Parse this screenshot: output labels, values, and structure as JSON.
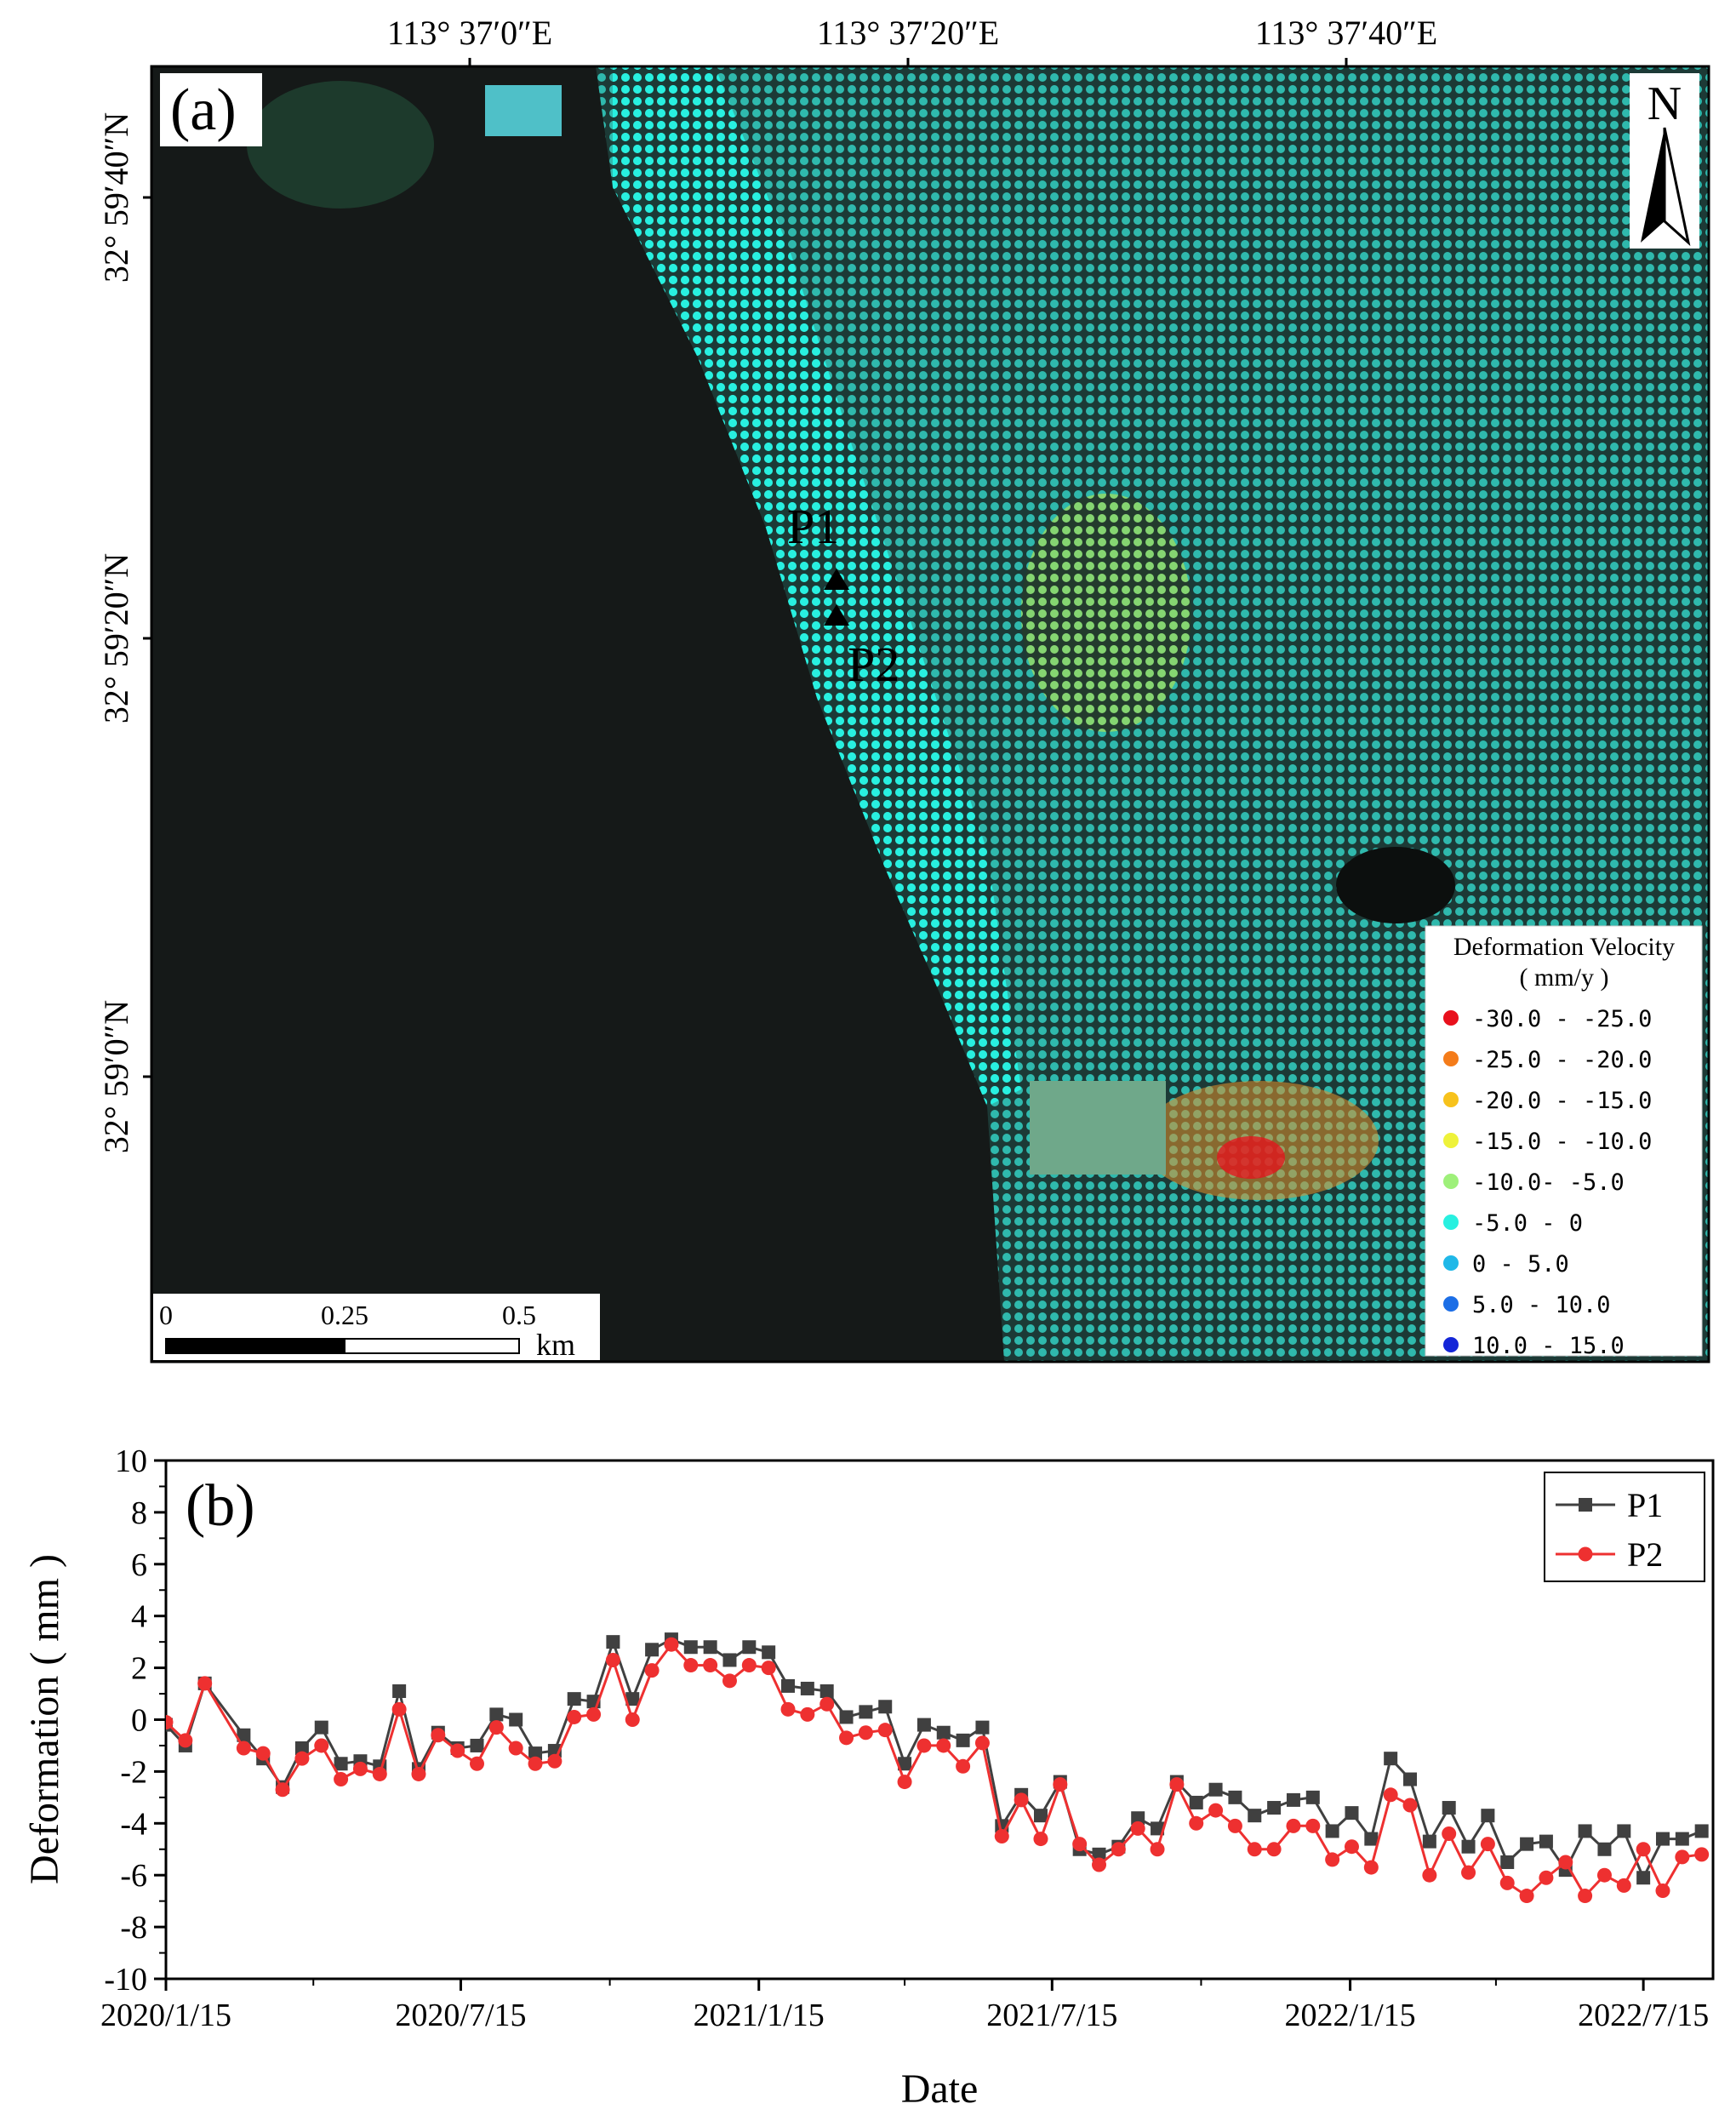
{
  "chart_data": [
    {
      "type": "map",
      "panel_label": "(a)",
      "lon_ticks": [
        "113° 37′0″E",
        "113° 37′20″E",
        "113° 37′40″E"
      ],
      "lat_ticks": [
        "32° 59′40″N",
        "32° 59′20″N",
        "32° 59′0″N"
      ],
      "north_label": "N",
      "points": [
        "P1",
        "P2"
      ],
      "legend": {
        "title": "Deformation Velocity",
        "unit": "( mm/y )",
        "placement": "bottom-right",
        "classes": [
          {
            "label": "-30.0 - -25.0",
            "color": "#e8101c"
          },
          {
            "label": "-25.0 - -20.0",
            "color": "#f47c1a"
          },
          {
            "label": "-20.0 - -15.0",
            "color": "#f7c21c"
          },
          {
            "label": "-15.0 - -10.0",
            "color": "#eef23a"
          },
          {
            "label": "-10.0- -5.0",
            "color": "#9ef07a"
          },
          {
            "label": "-5.0 - 0",
            "color": "#28f0e0"
          },
          {
            "label": "0 - 5.0",
            "color": "#1fb8e8"
          },
          {
            "label": "5.0 - 10.0",
            "color": "#1c6ee6"
          },
          {
            "label": "10.0 - 15.0",
            "color": "#1426d8"
          }
        ]
      },
      "scale_bar": {
        "labels": [
          "0",
          "0.25",
          "0.5"
        ],
        "unit": "km"
      }
    },
    {
      "type": "line",
      "panel_label": "(b)",
      "xlabel": "Date",
      "ylabel": "Deformation ( mm )",
      "ylim": [
        -10,
        10
      ],
      "yticks": [
        -10,
        -8,
        -6,
        -4,
        -2,
        0,
        2,
        4,
        6,
        8,
        10
      ],
      "xlim": [
        "2020-01-15",
        "2022-08-27"
      ],
      "xtick_labels": [
        {
          "label": "2020/1/15",
          "date": "2020-01-15"
        },
        {
          "label": "2020/7/15",
          "date": "2020-07-15"
        },
        {
          "label": "2021/1/15",
          "date": "2021-01-15"
        },
        {
          "label": "2021/7/15",
          "date": "2021-07-15"
        },
        {
          "label": "2022/1/15",
          "date": "2022-01-15"
        },
        {
          "label": "2022/7/15",
          "date": "2022-07-15"
        }
      ],
      "legend_placement": "top-right",
      "dates": [
        "2020-01-15",
        "2020-01-27",
        "2020-02-08",
        "2020-03-03",
        "2020-03-15",
        "2020-03-27",
        "2020-04-08",
        "2020-04-20",
        "2020-05-02",
        "2020-05-14",
        "2020-05-26",
        "2020-06-07",
        "2020-06-19",
        "2020-07-01",
        "2020-07-13",
        "2020-07-25",
        "2020-08-06",
        "2020-08-18",
        "2020-08-30",
        "2020-09-11",
        "2020-09-23",
        "2020-10-05",
        "2020-10-17",
        "2020-10-29",
        "2020-11-10",
        "2020-11-22",
        "2020-12-04",
        "2020-12-16",
        "2020-12-28",
        "2021-01-09",
        "2021-01-21",
        "2021-02-02",
        "2021-02-14",
        "2021-02-26",
        "2021-03-10",
        "2021-03-22",
        "2021-04-03",
        "2021-04-15",
        "2021-04-27",
        "2021-05-09",
        "2021-05-21",
        "2021-06-02",
        "2021-06-14",
        "2021-06-26",
        "2021-07-08",
        "2021-07-20",
        "2021-08-01",
        "2021-08-13",
        "2021-08-25",
        "2021-09-06",
        "2021-09-18",
        "2021-09-30",
        "2021-10-12",
        "2021-10-24",
        "2021-11-05",
        "2021-11-17",
        "2021-11-29",
        "2021-12-11",
        "2021-12-23",
        "2022-01-04",
        "2022-01-16",
        "2022-01-28",
        "2022-02-09",
        "2022-02-21",
        "2022-03-05",
        "2022-03-17",
        "2022-03-29",
        "2022-04-10",
        "2022-04-22",
        "2022-05-04",
        "2022-05-16",
        "2022-05-28",
        "2022-06-09",
        "2022-06-21",
        "2022-07-03",
        "2022-07-15",
        "2022-07-27",
        "2022-08-08",
        "2022-08-20"
      ],
      "series": [
        {
          "name": "P1",
          "color": "#404040",
          "marker": "square",
          "values": [
            -0.2,
            -1.0,
            1.4,
            -0.6,
            -1.5,
            -2.6,
            -1.1,
            -0.3,
            -1.7,
            -1.6,
            -1.8,
            1.1,
            -1.9,
            -0.5,
            -1.1,
            -1.0,
            0.2,
            0.0,
            -1.3,
            -1.2,
            0.8,
            0.7,
            3.0,
            0.8,
            2.7,
            3.1,
            2.8,
            2.8,
            2.3,
            2.8,
            2.6,
            1.3,
            1.2,
            1.1,
            0.1,
            0.3,
            0.5,
            -1.7,
            -0.2,
            -0.5,
            -0.8,
            -0.3,
            -4.1,
            -2.9,
            -3.7,
            -2.4,
            -5.0,
            -5.2,
            -4.9,
            -3.8,
            -4.2,
            -2.4,
            -3.2,
            -2.7,
            -3.0,
            -3.7,
            -3.4,
            -3.1,
            -3.0,
            -4.3,
            -3.6,
            -4.6,
            -1.5,
            -2.3,
            -4.7,
            -3.4,
            -4.9,
            -3.7,
            -5.5,
            -4.8,
            -4.7,
            -5.8,
            -4.3,
            -5.0,
            -4.3,
            -6.1,
            -4.6,
            -4.6,
            -4.3
          ]
        },
        {
          "name": "P2",
          "color": "#ee3030",
          "marker": "circle",
          "values": [
            -0.1,
            -0.8,
            1.4,
            -1.1,
            -1.3,
            -2.7,
            -1.5,
            -1.0,
            -2.3,
            -1.9,
            -2.1,
            0.4,
            -2.1,
            -0.6,
            -1.2,
            -1.7,
            -0.3,
            -1.1,
            -1.7,
            -1.6,
            0.1,
            0.2,
            2.3,
            0.0,
            1.9,
            2.9,
            2.1,
            2.1,
            1.5,
            2.1,
            2.0,
            0.4,
            0.2,
            0.6,
            -0.7,
            -0.5,
            -0.4,
            -2.4,
            -1.0,
            -1.0,
            -1.8,
            -0.9,
            -4.5,
            -3.1,
            -4.6,
            -2.5,
            -4.8,
            -5.6,
            -5.0,
            -4.2,
            -5.0,
            -2.5,
            -4.0,
            -3.5,
            -4.1,
            -5.0,
            -5.0,
            -4.1,
            -4.1,
            -5.4,
            -4.9,
            -5.7,
            -2.9,
            -3.3,
            -6.0,
            -4.4,
            -5.9,
            -4.8,
            -6.3,
            -6.8,
            -6.1,
            -5.5,
            -6.8,
            -6.0,
            -6.4,
            -5.0,
            -6.6,
            -5.3,
            -5.2
          ]
        }
      ]
    }
  ]
}
